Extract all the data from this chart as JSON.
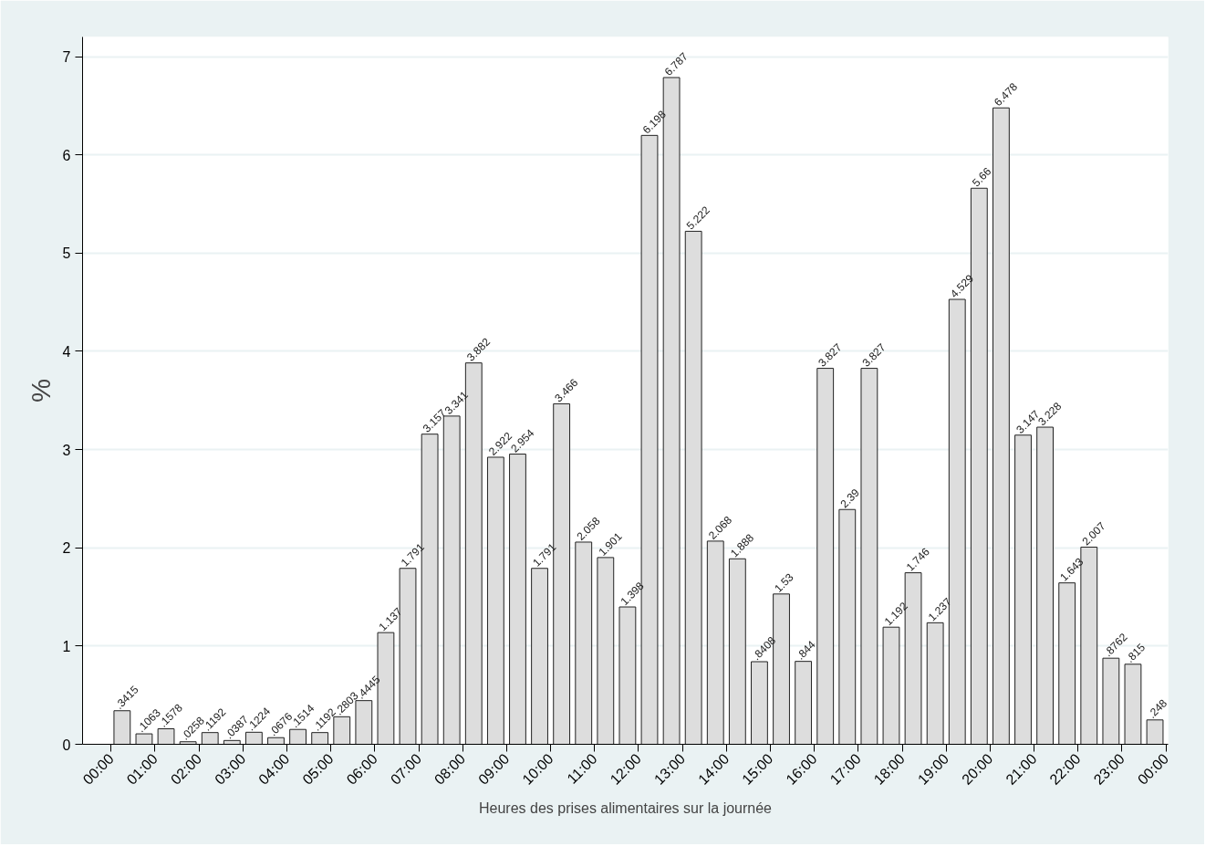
{
  "chart_data": {
    "type": "histogram",
    "xlabel": "Heures des prises alimentaires sur la journée",
    "ylabel": "%",
    "bins": [
      0,
      0.5,
      1,
      1.5,
      2,
      2.5,
      3,
      3.5,
      4,
      4.5,
      5,
      5.5,
      6,
      6.5,
      7,
      7.5,
      8,
      8.5,
      9,
      9.5,
      10,
      10.5,
      11,
      11.5,
      12,
      12.5,
      13,
      13.5,
      14,
      14.5,
      15,
      15.5,
      16,
      16.5,
      17,
      17.5,
      18,
      18.5,
      19,
      19.5,
      20,
      20.5,
      21,
      21.5,
      22,
      22.5,
      23,
      23.5,
      24
    ],
    "values": [
      0.3415,
      0.1063,
      0.1578,
      0.0258,
      0.1192,
      0.0387,
      0.1224,
      0.0676,
      0.1514,
      0.1192,
      0.2803,
      0.4445,
      1.137,
      1.791,
      3.157,
      3.341,
      3.882,
      2.922,
      2.954,
      1.791,
      3.466,
      2.058,
      1.901,
      1.398,
      6.198,
      6.787,
      5.222,
      2.068,
      1.888,
      0.8408,
      1.53,
      0.844,
      3.827,
      2.39,
      3.827,
      1.192,
      1.746,
      1.237,
      4.529,
      5.66,
      6.478,
      3.147,
      3.228,
      1.643,
      2.007,
      0.8762,
      0.815,
      0.248
    ],
    "value_labels": [
      ".3415",
      ".1063",
      ".1578",
      ".0258",
      ".1192",
      ".0387",
      ".1224",
      ".0676",
      ".1514",
      ".1192",
      ".2803",
      ".4445",
      "1.137",
      "1.791",
      "3.157",
      "3.341",
      "3.882",
      "2.922",
      "2.954",
      "1.791",
      "3.466",
      "2.058",
      "1.901",
      "1.398",
      "6.198",
      "6.787",
      "5.222",
      "2.068",
      "1.888",
      ".8408",
      "1.53",
      ".844",
      "3.827",
      "2.39",
      "3.827",
      "1.192",
      "1.746",
      "1.237",
      "4.529",
      "5.66",
      "6.478",
      "3.147",
      "3.228",
      "1.643",
      "2.007",
      ".8762",
      ".815",
      ".248"
    ],
    "color": "#dddddd",
    "xlim": [
      -0.65,
      24.05
    ],
    "xticks": [
      {
        "value": 0,
        "label": "00:00"
      },
      {
        "value": 1,
        "label": "01:00"
      },
      {
        "value": 2,
        "label": "02:00"
      },
      {
        "value": 3,
        "label": "03:00"
      },
      {
        "value": 4,
        "label": "04:00"
      },
      {
        "value": 5,
        "label": "05:00"
      },
      {
        "value": 6,
        "label": "06:00"
      },
      {
        "value": 7,
        "label": "07:00"
      },
      {
        "value": 8,
        "label": "08:00"
      },
      {
        "value": 9,
        "label": "09:00"
      },
      {
        "value": 10,
        "label": "10:00"
      },
      {
        "value": 11,
        "label": "11:00"
      },
      {
        "value": 12,
        "label": "12:00"
      },
      {
        "value": 13,
        "label": "13:00"
      },
      {
        "value": 14,
        "label": "14:00"
      },
      {
        "value": 15,
        "label": "15:00"
      },
      {
        "value": 16,
        "label": "16:00"
      },
      {
        "value": 17,
        "label": "17:00"
      },
      {
        "value": 18,
        "label": "18:00"
      },
      {
        "value": 19,
        "label": "19:00"
      },
      {
        "value": 20,
        "label": "20:00"
      },
      {
        "value": 21,
        "label": "21:00"
      },
      {
        "value": 22,
        "label": "22:00"
      },
      {
        "value": 23,
        "label": "23:00"
      },
      {
        "value": 24,
        "label": "00:00"
      }
    ],
    "ylim": [
      0,
      7.2
    ],
    "yticks": [
      0,
      1,
      2,
      3,
      4,
      5,
      6,
      7
    ],
    "grid": "y"
  }
}
